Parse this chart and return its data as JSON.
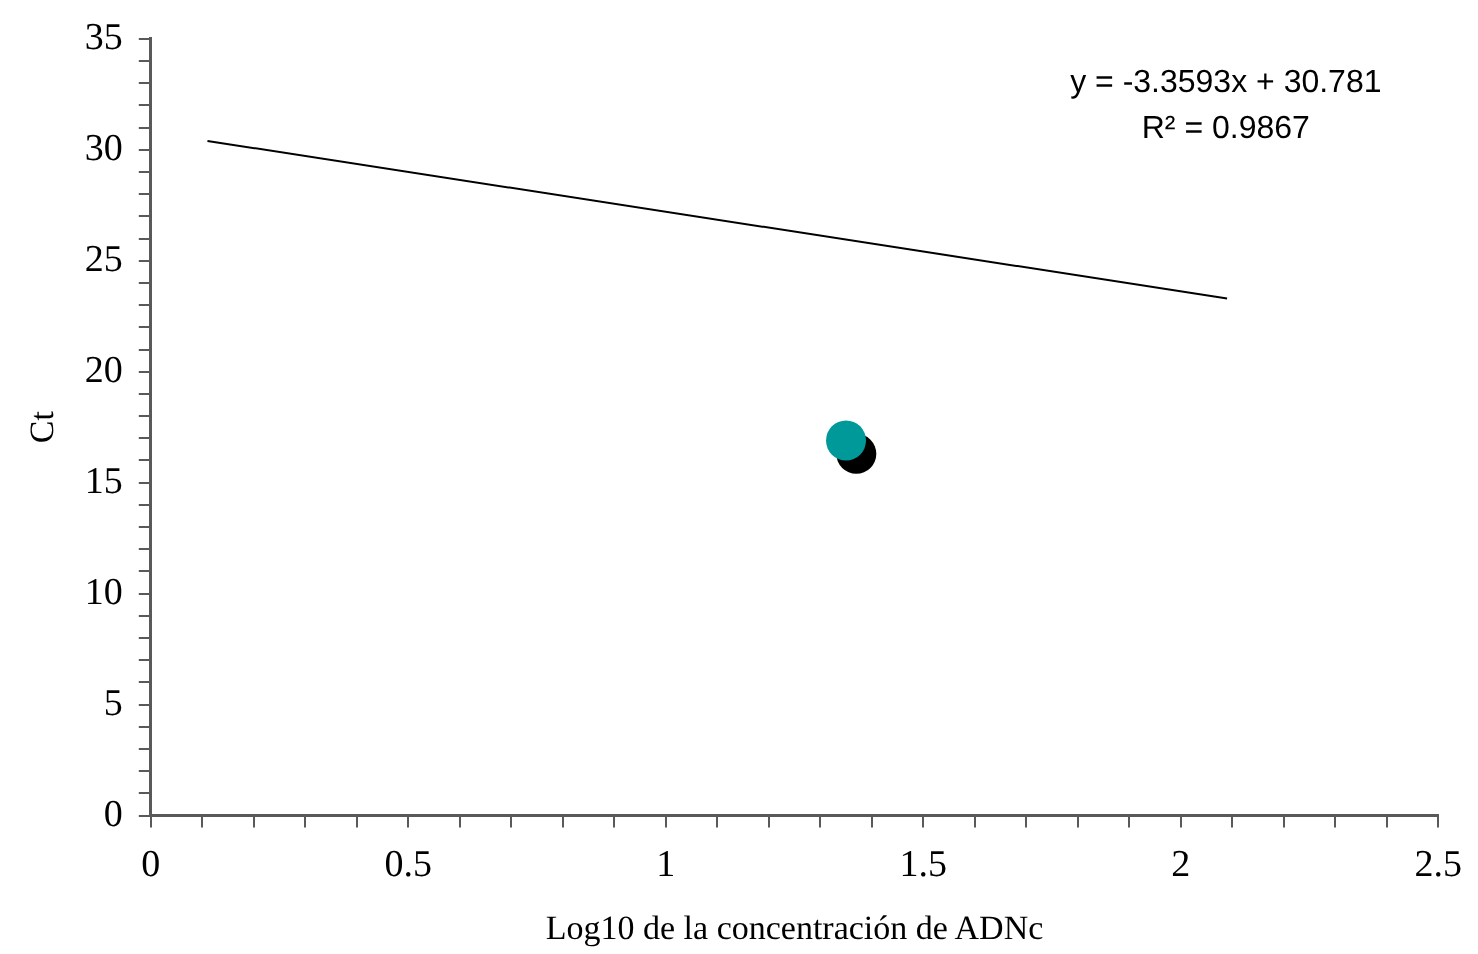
{
  "chart_data": {
    "type": "scatter",
    "xlabel": "Log10 de la concentración de ADNc",
    "ylabel": "Ct",
    "xlim": [
      0,
      2.5
    ],
    "xticks": [
      0,
      {
        "value": 0.1,
        "label": null
      },
      {
        "value": 0.2,
        "label": null
      },
      {
        "value": 0.3,
        "label": null
      },
      {
        "value": 0.4,
        "label": null
      },
      0.5,
      {
        "value": 0.6,
        "label": null
      },
      {
        "value": 0.7,
        "label": null
      },
      {
        "value": 0.8,
        "label": null
      },
      {
        "value": 0.9,
        "label": null
      },
      1,
      {
        "value": 1.1,
        "label": null
      },
      {
        "value": 1.2,
        "label": null
      },
      {
        "value": 1.3,
        "label": null
      },
      {
        "value": 1.4,
        "label": null
      },
      1.5,
      {
        "value": 1.6,
        "label": null
      },
      {
        "value": 1.7,
        "label": null
      },
      {
        "value": 1.8,
        "label": null
      },
      {
        "value": 1.9,
        "label": null
      },
      2,
      {
        "value": 2.1,
        "label": null
      },
      {
        "value": 2.2,
        "label": null
      },
      {
        "value": 2.3,
        "label": null
      },
      {
        "value": 2.4,
        "label": null
      },
      2.5
    ],
    "ylim": [
      0,
      35
    ],
    "yticks": [
      0,
      {
        "value": 1,
        "label": null
      },
      {
        "value": 2,
        "label": null
      },
      {
        "value": 3,
        "label": null
      },
      {
        "value": 4,
        "label": null
      },
      5,
      {
        "value": 6,
        "label": null
      },
      {
        "value": 7,
        "label": null
      },
      {
        "value": 8,
        "label": null
      },
      {
        "value": 9,
        "label": null
      },
      10,
      {
        "value": 11,
        "label": null
      },
      {
        "value": 12,
        "label": null
      },
      {
        "value": 13,
        "label": null
      },
      {
        "value": 14,
        "label": null
      },
      15,
      {
        "value": 16,
        "label": null
      },
      {
        "value": 17,
        "label": null
      },
      {
        "value": 18,
        "label": null
      },
      {
        "value": 19,
        "label": null
      },
      20,
      {
        "value": 21,
        "label": null
      },
      {
        "value": 22,
        "label": null
      },
      {
        "value": 23,
        "label": null
      },
      {
        "value": 24,
        "label": null
      },
      25,
      {
        "value": 26,
        "label": null
      },
      {
        "value": 27,
        "label": null
      },
      {
        "value": 28,
        "label": null
      },
      {
        "value": 29,
        "label": null
      },
      30,
      {
        "value": 31,
        "label": null
      },
      {
        "value": 32,
        "label": null
      },
      {
        "value": 33,
        "label": null
      },
      {
        "value": 34,
        "label": null
      },
      35
    ],
    "marker": "circle",
    "grid": false,
    "legend": false,
    "series": [
      {
        "type": "line",
        "color": "#000000",
        "marker": "none",
        "x": [
          0.11,
          2.09
        ],
        "values": [
          30.4,
          23.3
        ]
      },
      {
        "color": "#000000",
        "x": [
          1.37
        ],
        "values": [
          16.3
        ]
      },
      {
        "color": "#009999",
        "x": [
          1.35
        ],
        "values": [
          16.9
        ]
      }
    ],
    "annotations": [
      "y = -3.3593x + 30.781",
      "R² = 0.9867"
    ]
  }
}
